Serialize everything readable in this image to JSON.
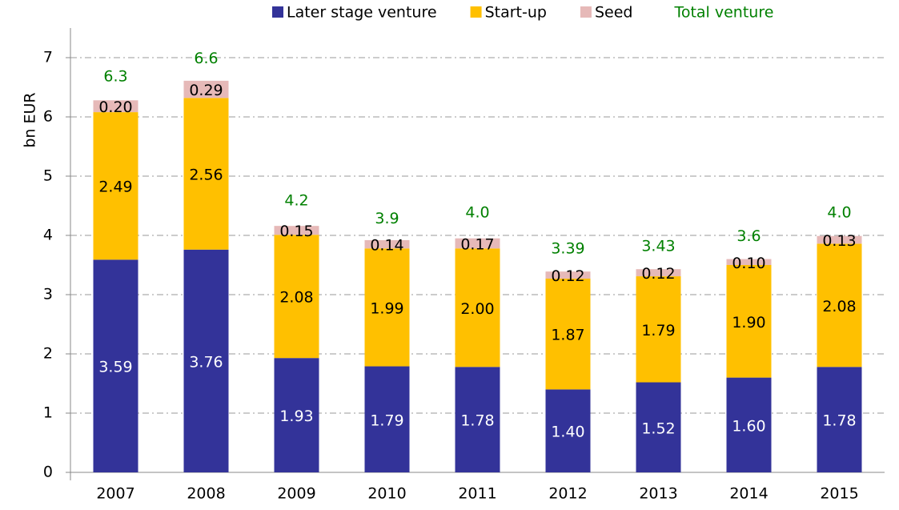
{
  "chart_data": {
    "type": "stacked_bar",
    "y_label": "bn EUR",
    "categories": [
      "2007",
      "2008",
      "2009",
      "2010",
      "2011",
      "2012",
      "2013",
      "2014",
      "2015"
    ],
    "series": [
      {
        "name": "Later stage venture",
        "color": "#333399",
        "values": [
          3.59,
          3.76,
          1.93,
          1.79,
          1.78,
          1.4,
          1.52,
          1.6,
          1.78
        ],
        "value_labels": [
          "3.59",
          "3.76",
          "1.93",
          "1.79",
          "1.78",
          "1.40",
          "1.52",
          "1.60",
          "1.78"
        ]
      },
      {
        "name": "Start-up",
        "color": "#ffc000",
        "values": [
          2.49,
          2.56,
          2.08,
          1.99,
          2.0,
          1.87,
          1.79,
          1.9,
          2.08
        ],
        "value_labels": [
          "2.49",
          "2.56",
          "2.08",
          "1.99",
          "2.00",
          "1.87",
          "1.79",
          "1.90",
          "2.08"
        ]
      },
      {
        "name": "Seed",
        "color": "#e6b9b8",
        "values": [
          0.2,
          0.29,
          0.15,
          0.14,
          0.17,
          0.12,
          0.12,
          0.1,
          0.13
        ],
        "value_labels": [
          "0.20",
          "0.29",
          "0.15",
          "0.14",
          "0.17",
          "0.12",
          "0.12",
          "0.10",
          "0.13"
        ]
      }
    ],
    "totals": {
      "name": "Total venture",
      "color": "#008000",
      "values": [
        6.3,
        6.6,
        4.2,
        3.9,
        4.0,
        3.39,
        3.43,
        3.6,
        4.0
      ],
      "value_labels": [
        "6.3",
        "6.6",
        "4.2",
        "3.9",
        "4.0",
        "3.39",
        "3.43",
        "3.6",
        "4.0"
      ]
    },
    "ylim": [
      0,
      7.5
    ],
    "yticks": [
      0,
      1,
      2,
      3,
      4,
      5,
      6,
      7
    ],
    "grid": true
  }
}
